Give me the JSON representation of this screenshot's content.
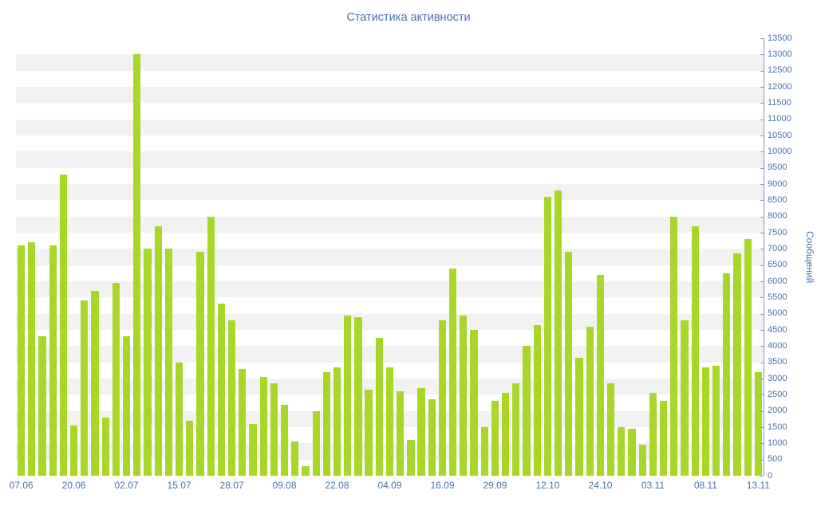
{
  "chart_data": {
    "type": "bar",
    "title": "Статистика активности",
    "xlabel": "",
    "ylabel": "Сообщений",
    "ylim": [
      0,
      13500
    ],
    "y_step": 500,
    "grid": "horizontal-stripe-bands-every-500",
    "legend": "none",
    "x_tick_labels": [
      "07.06",
      "20.06",
      "02.07",
      "15.07",
      "28.07",
      "09.08",
      "22.08",
      "04.09",
      "16.09",
      "29.09",
      "12.10",
      "24.10",
      "03.11",
      "08.11",
      "13.11"
    ],
    "bars_per_x_tick": 5,
    "values": [
      7100,
      7200,
      4300,
      7100,
      9300,
      1550,
      5400,
      5700,
      1800,
      5950,
      4300,
      13000,
      7000,
      7700,
      7000,
      3500,
      1700,
      6900,
      8000,
      5300,
      4800,
      3300,
      1600,
      3050,
      2850,
      2200,
      1050,
      300,
      2000,
      3200,
      3350,
      4950,
      4900,
      2650,
      4250,
      3350,
      2600,
      1100,
      2700,
      2350,
      4800,
      6400,
      4950,
      4500,
      1500,
      2300,
      2550,
      2850,
      4000,
      4650,
      8600,
      8800,
      6900,
      3650,
      4600,
      6200,
      2850,
      1500,
      1450,
      950,
      2550,
      2300,
      8000,
      4800,
      7700,
      3350,
      3400,
      6250,
      6850,
      7300,
      3200
    ],
    "colors": {
      "bar": "#a8d629",
      "label": "#4a72a8",
      "axis": "#7a9cc6",
      "stripe": "#f2f2f2",
      "background": "#ffffff"
    }
  }
}
